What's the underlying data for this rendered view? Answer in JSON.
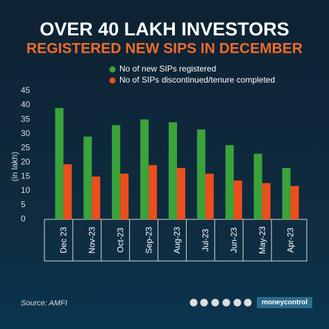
{
  "chart_data": {
    "type": "bar",
    "title": "OVER 40 LAKH INVESTORS",
    "subtitle": "REGISTERED NEW SIPS IN DECEMBER",
    "y_label": "(in lakh)",
    "categories": [
      "Dec 23",
      "Nov-23",
      "Oct-23",
      "Sep-23",
      "Aug-23",
      "Jul-23",
      "Jun-23",
      "May-23",
      "Apr-23"
    ],
    "series": [
      {
        "name": "No of new SIPs registered",
        "color": "#3aa33a",
        "values": [
          39,
          29,
          33,
          35,
          34,
          31.5,
          26,
          23,
          18
        ]
      },
      {
        "name": "No of SIPs discontinued/tenure completed",
        "color": "#ec4e1c",
        "values": [
          19.3,
          15,
          16,
          19,
          18,
          16,
          13.6,
          12.7,
          11.7
        ]
      }
    ],
    "ylim": [
      0,
      45
    ],
    "yticks": [
      0,
      5,
      10,
      15,
      20,
      25,
      30,
      35,
      40,
      45
    ],
    "source": "Source: AMFI",
    "brand": "moneycontrol"
  }
}
